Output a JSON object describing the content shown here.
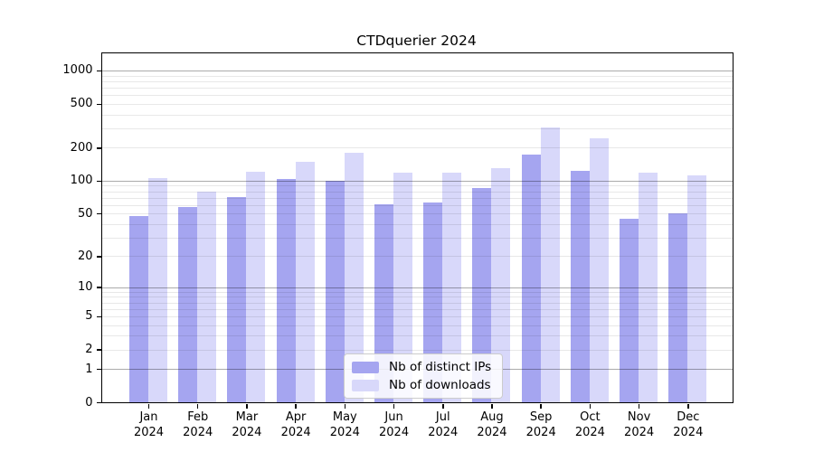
{
  "title": "CTDquerier 2024",
  "chart_data": {
    "type": "bar",
    "title": "CTDquerier 2024",
    "x_categories": [
      "Jan 2024",
      "Feb 2024",
      "Mar 2024",
      "Apr 2024",
      "May 2024",
      "Jun 2024",
      "Jul 2024",
      "Aug 2024",
      "Sep 2024",
      "Oct 2024",
      "Nov 2024",
      "Dec 2024"
    ],
    "series": [
      {
        "name": "Nb of distinct IPs",
        "color": "#a5a5f0",
        "values": [
          47,
          57,
          71,
          104,
          99,
          61,
          63,
          85,
          174,
          123,
          45,
          50
        ]
      },
      {
        "name": "Nb of downloads",
        "color": "#d8d8fa",
        "values": [
          105,
          79,
          121,
          148,
          180,
          118,
          119,
          131,
          306,
          244,
          118,
          111
        ]
      }
    ],
    "yscale": "log1p",
    "ytick_values": [
      0,
      1,
      2,
      5,
      10,
      20,
      50,
      100,
      200,
      500,
      1000
    ],
    "ylim": [
      0,
      1430
    ],
    "grid": "horizontal, minor+major (majors at 1, 10, 100, 1000)",
    "legend_position": "lower center"
  },
  "colors": {
    "bar_distinct_ips": "#a5a5f0",
    "bar_downloads": "#d8d8fa",
    "major_gridline": "#adadad",
    "minor_gridline": "#e8e8e8",
    "axis": "#000000",
    "background": "#ffffff"
  }
}
